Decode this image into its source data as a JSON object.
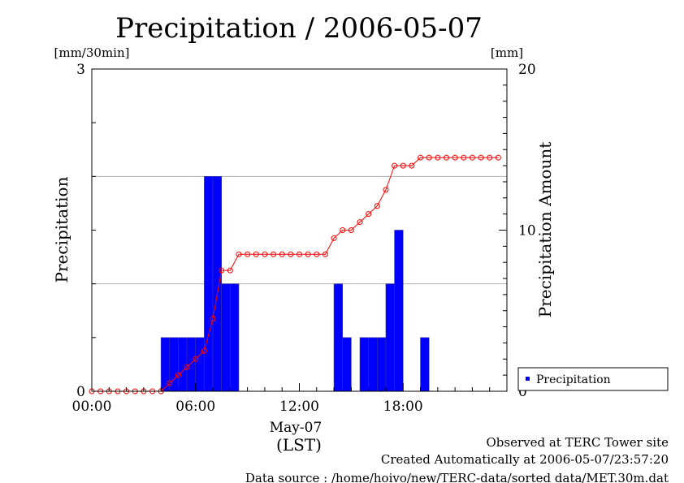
{
  "chart_data": {
    "type": "bar",
    "title": "Precipitation / 2006-05-07",
    "left_unit": "[mm/30min]",
    "right_unit": "[mm]",
    "ylabel": "Precipitation",
    "y2label": "Precipitation Amount",
    "ylim": [
      0,
      3
    ],
    "y2lim": [
      0,
      20
    ],
    "y_ticks": [
      "0",
      "3"
    ],
    "y2_ticks": [
      "0",
      "10",
      "20"
    ],
    "x_ticks": [
      "00:00",
      "06:00",
      "12:00",
      "18:00"
    ],
    "x_date": "May-07",
    "x_tz": "(LST)",
    "grid": "horizontal",
    "legend": {
      "position": "bottom-right",
      "entries": [
        "Precipitation"
      ]
    },
    "series": [
      {
        "name": "Precipitation",
        "kind": "bar",
        "color": "#0000ff",
        "x_hours": [
          0,
          0.5,
          1,
          1.5,
          2,
          2.5,
          3,
          3.5,
          4,
          4.5,
          5,
          5.5,
          6,
          6.5,
          7,
          7.5,
          8,
          8.5,
          9,
          9.5,
          10,
          10.5,
          11,
          11.5,
          12,
          12.5,
          13,
          13.5,
          14,
          14.5,
          15,
          15.5,
          16,
          16.5,
          17,
          17.5,
          18,
          18.5,
          19,
          19.5,
          20,
          20.5,
          21,
          21.5,
          22,
          22.5,
          23,
          23.5
        ],
        "values": [
          0,
          0,
          0,
          0,
          0,
          0,
          0,
          0,
          0.5,
          0.5,
          0.5,
          0.5,
          0.5,
          2,
          2,
          1,
          1,
          0,
          0,
          0,
          0,
          0,
          0,
          0,
          0,
          0,
          0,
          0,
          1,
          0.5,
          0,
          0.5,
          0.5,
          0.5,
          1,
          1.5,
          0,
          0,
          0.5,
          0,
          0,
          0,
          0,
          0,
          0,
          0,
          0,
          0
        ]
      },
      {
        "kind": "line",
        "color": "#ff0000",
        "x_hours": [
          0,
          0.5,
          1,
          1.5,
          2,
          2.5,
          3,
          3.5,
          4,
          4.5,
          5,
          5.5,
          6,
          6.5,
          7,
          7.5,
          8,
          8.5,
          9,
          9.5,
          10,
          10.5,
          11,
          11.5,
          12,
          12.5,
          13,
          13.5,
          14,
          14.5,
          15,
          15.5,
          16,
          16.5,
          17,
          17.5,
          18,
          18.5,
          19,
          19.5,
          20,
          20.5,
          21,
          21.5,
          22,
          22.5,
          23,
          23.5
        ],
        "values": [
          0,
          0,
          0,
          0,
          0,
          0,
          0,
          0,
          0,
          0.5,
          1,
          1.5,
          2,
          2.5,
          4.5,
          7.5,
          7.5,
          8.5,
          8.5,
          8.5,
          8.5,
          8.5,
          8.5,
          8.5,
          8.5,
          8.5,
          8.5,
          8.5,
          9.5,
          10,
          10,
          10.5,
          11,
          11.5,
          12.5,
          14,
          14,
          14,
          14.5,
          14.5,
          14.5,
          14.5,
          14.5,
          14.5,
          14.5,
          14.5,
          14.5,
          14.5
        ]
      }
    ]
  },
  "footer": {
    "observed": "Observed at TERC Tower site",
    "created": "Created Automatically at 2006-05-07/23:57:20",
    "source": "Data source : /home/hoivo/new/TERC-data/sorted  data/MET.30m.dat"
  }
}
